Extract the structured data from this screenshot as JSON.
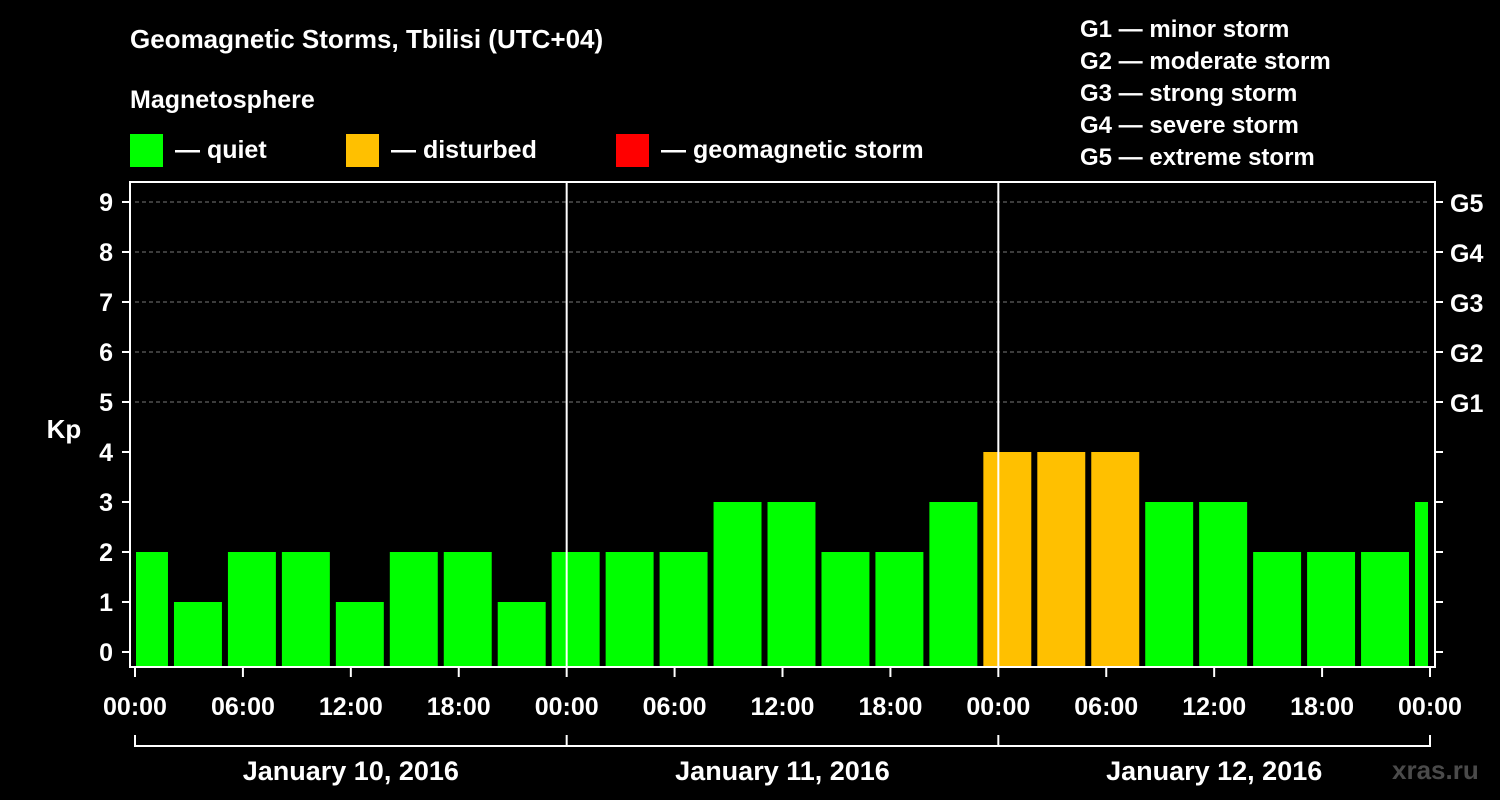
{
  "title": "Geomagnetic Storms, Tbilisi (UTC+04)",
  "legend": {
    "heading": "Magnetosphere",
    "items": [
      {
        "label": "— quiet",
        "color": "#00ff00"
      },
      {
        "label": "— disturbed",
        "color": "#ffc000"
      },
      {
        "label": "— geomagnetic storm",
        "color": "#ff0000"
      }
    ]
  },
  "g_scale_legend": [
    "G1 — minor storm",
    "G2 — moderate storm",
    "G3 — strong storm",
    "G4 — severe storm",
    "G5 — extreme storm"
  ],
  "watermark": "xras.ru",
  "chart_data": {
    "type": "bar",
    "ylabel": "Kp",
    "ylim": [
      0,
      9
    ],
    "yticks": [
      0,
      1,
      2,
      3,
      4,
      5,
      6,
      7,
      8,
      9
    ],
    "right_axis_labels": [
      {
        "kp": 5,
        "label": "G1"
      },
      {
        "kp": 6,
        "label": "G2"
      },
      {
        "kp": 7,
        "label": "G3"
      },
      {
        "kp": 8,
        "label": "G4"
      },
      {
        "kp": 9,
        "label": "G5"
      }
    ],
    "xtick_labels": [
      "00:00",
      "06:00",
      "12:00",
      "18:00",
      "00:00",
      "06:00",
      "12:00",
      "18:00",
      "00:00",
      "06:00",
      "12:00",
      "18:00",
      "00:00"
    ],
    "day_labels": [
      "January 10, 2016",
      "January 11, 2016",
      "January 12, 2016"
    ],
    "interval_hours": 3,
    "start_hour_offset": -1,
    "values": [
      2,
      1,
      2,
      2,
      1,
      2,
      2,
      1,
      2,
      2,
      2,
      3,
      3,
      2,
      2,
      3,
      4,
      4,
      4,
      3,
      3,
      2,
      2,
      2,
      3
    ],
    "status_thresholds": {
      "quiet_max": 3,
      "disturbed_max": 4
    },
    "grid_y_from": 5,
    "colors": {
      "quiet": "#00ff00",
      "disturbed": "#ffc000",
      "storm": "#ff0000"
    }
  }
}
